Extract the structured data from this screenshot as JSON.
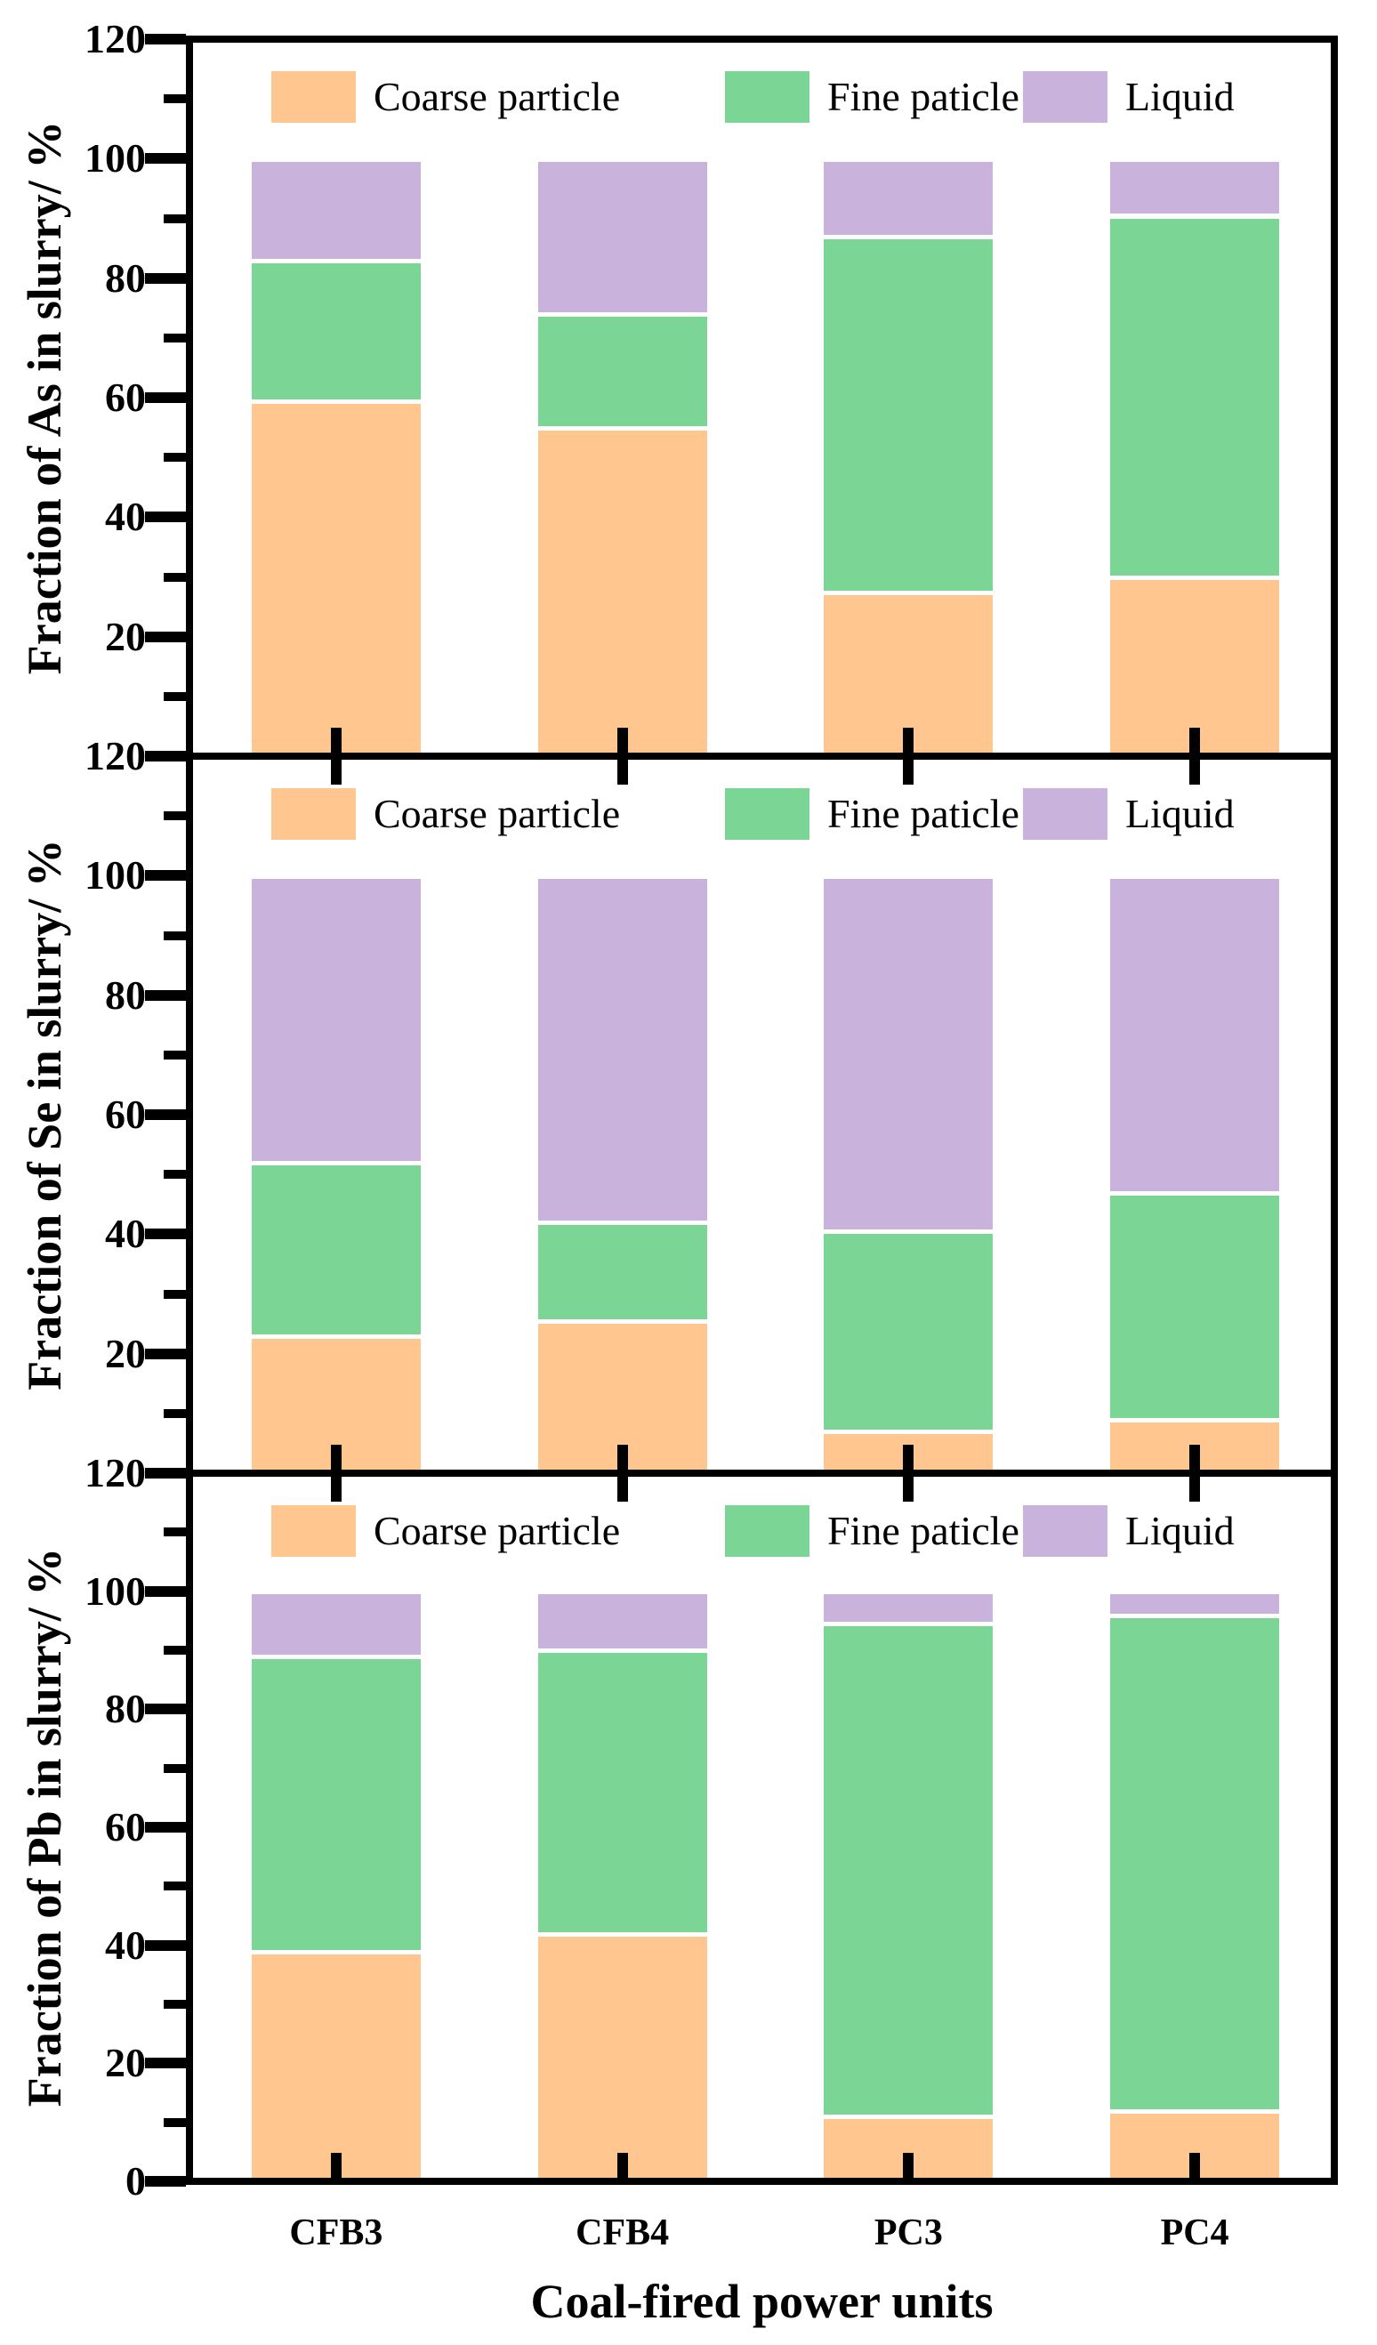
{
  "figure": {
    "xlabel": "Coal-fired power units",
    "categories": [
      "CFB3",
      "CFB4",
      "PC3",
      "PC4"
    ],
    "legend": [
      "Coarse particle",
      "Fine paticle",
      "Liquid"
    ],
    "colors": {
      "series": [
        "#FFC68F",
        "#7BD695",
        "#C9B3DC"
      ],
      "axis": "#000000",
      "background": "#FFFFFF",
      "segment_gap": "#FFFFFF"
    }
  },
  "chart_data": [
    {
      "type": "bar",
      "stacked": true,
      "ylabel": "Fraction of As in slurry/ %",
      "categories": [
        "CFB3",
        "CFB4",
        "PC3",
        "PC4"
      ],
      "series": [
        {
          "name": "Coarse particle",
          "values": [
            59,
            54.5,
            27,
            29.5
          ]
        },
        {
          "name": "Fine paticle",
          "values": [
            23.5,
            19,
            59.5,
            60.5
          ]
        },
        {
          "name": "Liquid",
          "values": [
            17,
            26,
            13,
            9.5
          ]
        }
      ],
      "ylim": [
        0,
        120
      ],
      "ytick_major_step": 20,
      "ytick_minor_step": 10,
      "yticks_labeled": [
        120,
        100,
        80,
        60,
        40,
        20
      ],
      "legend_position": "top-inside",
      "grid": false
    },
    {
      "type": "bar",
      "stacked": true,
      "ylabel": "Fraction of Se in slurry/ %",
      "categories": [
        "CFB3",
        "CFB4",
        "PC3",
        "PC4"
      ],
      "series": [
        {
          "name": "Coarse particle",
          "values": [
            22.5,
            25,
            6.5,
            8.5
          ]
        },
        {
          "name": "Fine paticle",
          "values": [
            29,
            16.5,
            33.5,
            38
          ]
        },
        {
          "name": "Liquid",
          "values": [
            48,
            58,
            59.5,
            53
          ]
        }
      ],
      "ylim": [
        0,
        120
      ],
      "ytick_major_step": 20,
      "ytick_minor_step": 10,
      "yticks_labeled": [
        120,
        100,
        80,
        60,
        40,
        20
      ],
      "legend_position": "top-inside",
      "grid": false
    },
    {
      "type": "bar",
      "stacked": true,
      "ylabel": "Fraction of Pb in slurry/ %",
      "categories": [
        "CFB3",
        "CFB4",
        "PC3",
        "PC4"
      ],
      "series": [
        {
          "name": "Coarse particle",
          "values": [
            38.5,
            41.5,
            10.5,
            11.5
          ]
        },
        {
          "name": "Fine paticle",
          "values": [
            50,
            48,
            83.5,
            84
          ]
        },
        {
          "name": "Liquid",
          "values": [
            11,
            10,
            5.5,
            4
          ]
        }
      ],
      "ylim": [
        0,
        120
      ],
      "ytick_major_step": 20,
      "ytick_minor_step": 10,
      "yticks_labeled": [
        120,
        100,
        80,
        60,
        40,
        20,
        0
      ],
      "legend_position": "top-inside",
      "grid": false
    }
  ]
}
